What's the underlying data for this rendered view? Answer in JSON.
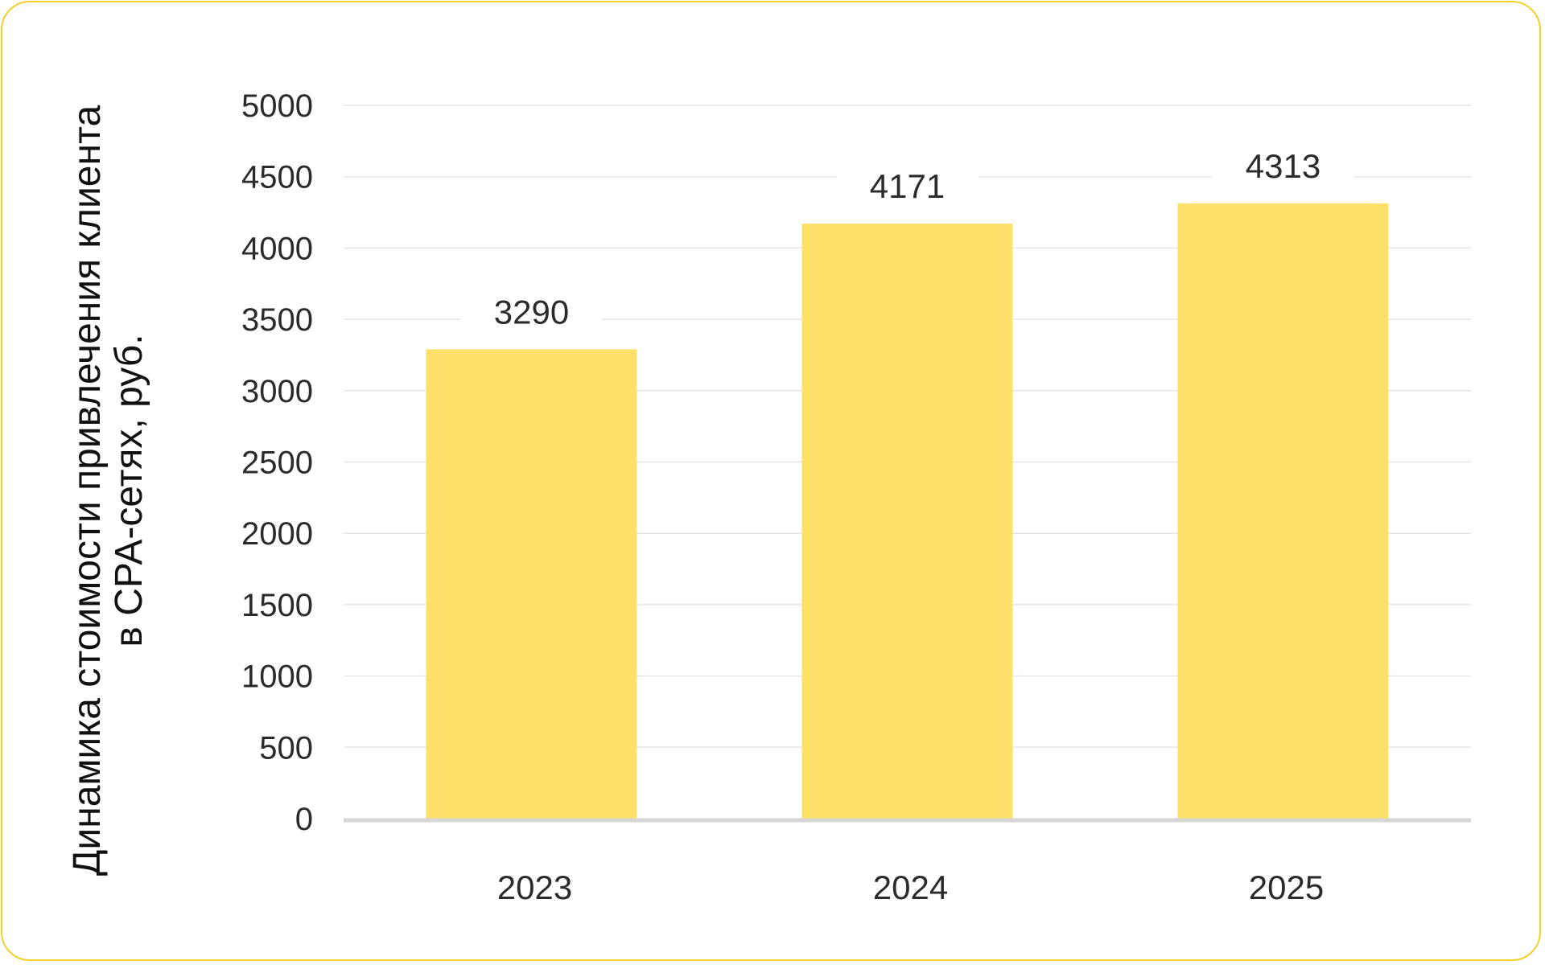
{
  "chart_data": {
    "type": "bar",
    "categories": [
      "2023",
      "2024",
      "2025"
    ],
    "values": [
      3290,
      4171,
      4313
    ],
    "data_labels": [
      "3290",
      "4171",
      "4313"
    ],
    "title": "",
    "xlabel": "",
    "ylabel_lines": [
      "Динамика стоимости привлечения клиента",
      "в CPA-сетях, руб."
    ],
    "ylim": [
      0,
      5000
    ],
    "yticks": [
      "0",
      "500",
      "1000",
      "1500",
      "2000",
      "2500",
      "3000",
      "3500",
      "4000",
      "4500",
      "5000"
    ],
    "grid": true,
    "legend": "none",
    "colors": {
      "bar": "#fce06a",
      "grid": "#e6e6e6",
      "baseline": "#d6d6d6",
      "border": "#f3cf2c"
    }
  }
}
